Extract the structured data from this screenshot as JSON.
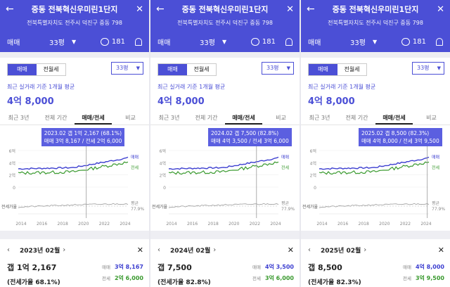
{
  "header": {
    "title": "중동 전북혁신우미린1단지",
    "address": "전북특별자치도 전주시 덕진구 중동 798",
    "type_label": "매매",
    "pyeong_label": "33평",
    "comment_count": "181"
  },
  "toggle": {
    "sale": "매매",
    "jeonse": "전월세"
  },
  "size_select": "33평",
  "basis_text": "최근 실거래 기준 1개월 평균",
  "avg_price": "4억 8,000",
  "tabs": [
    "최근 3년",
    "전체 기간",
    "매매/전세",
    "비교"
  ],
  "axis": {
    "y_ticks": [
      "6억",
      "4억",
      "2억",
      "0"
    ],
    "x_ticks": [
      "2014",
      "2016",
      "2018",
      "2020",
      "2022",
      "2024"
    ],
    "ratio_label": "전세가율",
    "legend_sale": "매매",
    "legend_jeonse": "전세",
    "legend_avg": "평균",
    "avg_value": "77.9%"
  },
  "colors": {
    "brand": "#4b4fd6",
    "sale_line": "#3d3fd0",
    "jeonse_line": "#3a9a2f"
  },
  "panels": [
    {
      "tooltip_line1": "2023.02  갭 1억 2,167 (68.1%)",
      "tooltip_line2": "매매 3억 8,167 / 전세 2억 6,000",
      "month": "2023년 02월",
      "gap": "갭 1억 2,167",
      "ratio": "(전세가율 68.1%)",
      "sale_label": "매매",
      "sale_value": "3억 8,167",
      "jeonse_label": "전세",
      "jeonse_value": "2억 6,000",
      "cursor": 0.62
    },
    {
      "tooltip_line1": "2024.02  갭 7,500 (82.8%)",
      "tooltip_line2": "매매 4억 3,500 / 전세 3억 6,000",
      "month": "2024년 02월",
      "gap": "갭 7,500",
      "ratio": "(전세가율 82.8%)",
      "sale_label": "매매",
      "sale_value": "4억 3,500",
      "jeonse_label": "전세",
      "jeonse_value": "3억 6,000",
      "cursor": 0.8
    },
    {
      "tooltip_line1": "2025.02  갭 8,500 (82.3%)",
      "tooltip_line2": "매매 4억 8,000 / 전세 3억 9,500",
      "month": "2025년 02월",
      "gap": "갭 8,500",
      "ratio": "(전세가율 82.3%)",
      "sale_label": "매매",
      "sale_value": "4억 8,000",
      "jeonse_label": "전세",
      "jeonse_value": "3억 9,500",
      "cursor": 0.985
    }
  ]
}
